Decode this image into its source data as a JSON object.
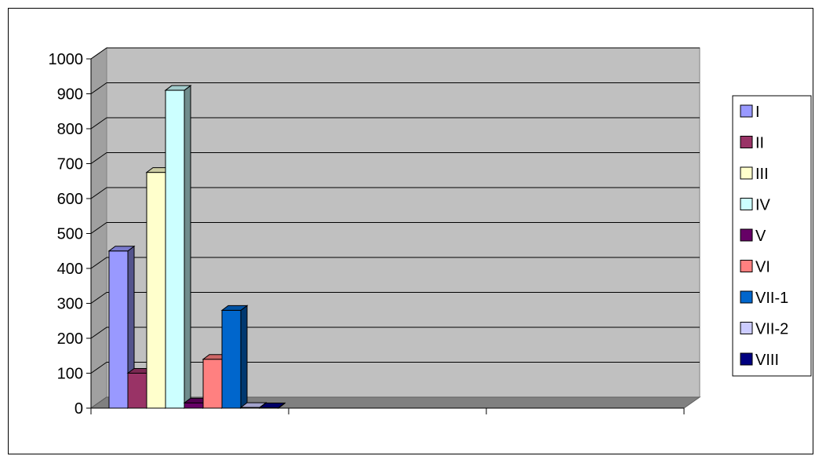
{
  "chart_data": {
    "type": "bar",
    "title": "",
    "xlabel": "",
    "ylabel": "",
    "ylim": [
      0,
      1000
    ],
    "y_ticks": [
      "0",
      "100",
      "200",
      "300",
      "400",
      "500",
      "600",
      "700",
      "800",
      "900",
      "1000"
    ],
    "grid": true,
    "legend_position": "right",
    "categories": [
      "",
      "",
      ""
    ],
    "series": [
      {
        "name": "I",
        "color": "#9999ff",
        "values": [
          450,
          null,
          null
        ]
      },
      {
        "name": "II",
        "color": "#993366",
        "values": [
          100,
          null,
          null
        ]
      },
      {
        "name": "III",
        "color": "#ffffcc",
        "values": [
          675,
          null,
          null
        ]
      },
      {
        "name": "IV",
        "color": "#ccffff",
        "values": [
          910,
          null,
          null
        ]
      },
      {
        "name": "V",
        "color": "#660066",
        "values": [
          15,
          null,
          null
        ]
      },
      {
        "name": "VI",
        "color": "#ff8080",
        "values": [
          140,
          null,
          null
        ]
      },
      {
        "name": "VII-1",
        "color": "#0066cc",
        "values": [
          280,
          null,
          null
        ]
      },
      {
        "name": "VII-2",
        "color": "#ccccff",
        "values": [
          2,
          null,
          null
        ]
      },
      {
        "name": "VIII",
        "color": "#000080",
        "values": [
          1,
          null,
          null
        ]
      }
    ]
  }
}
